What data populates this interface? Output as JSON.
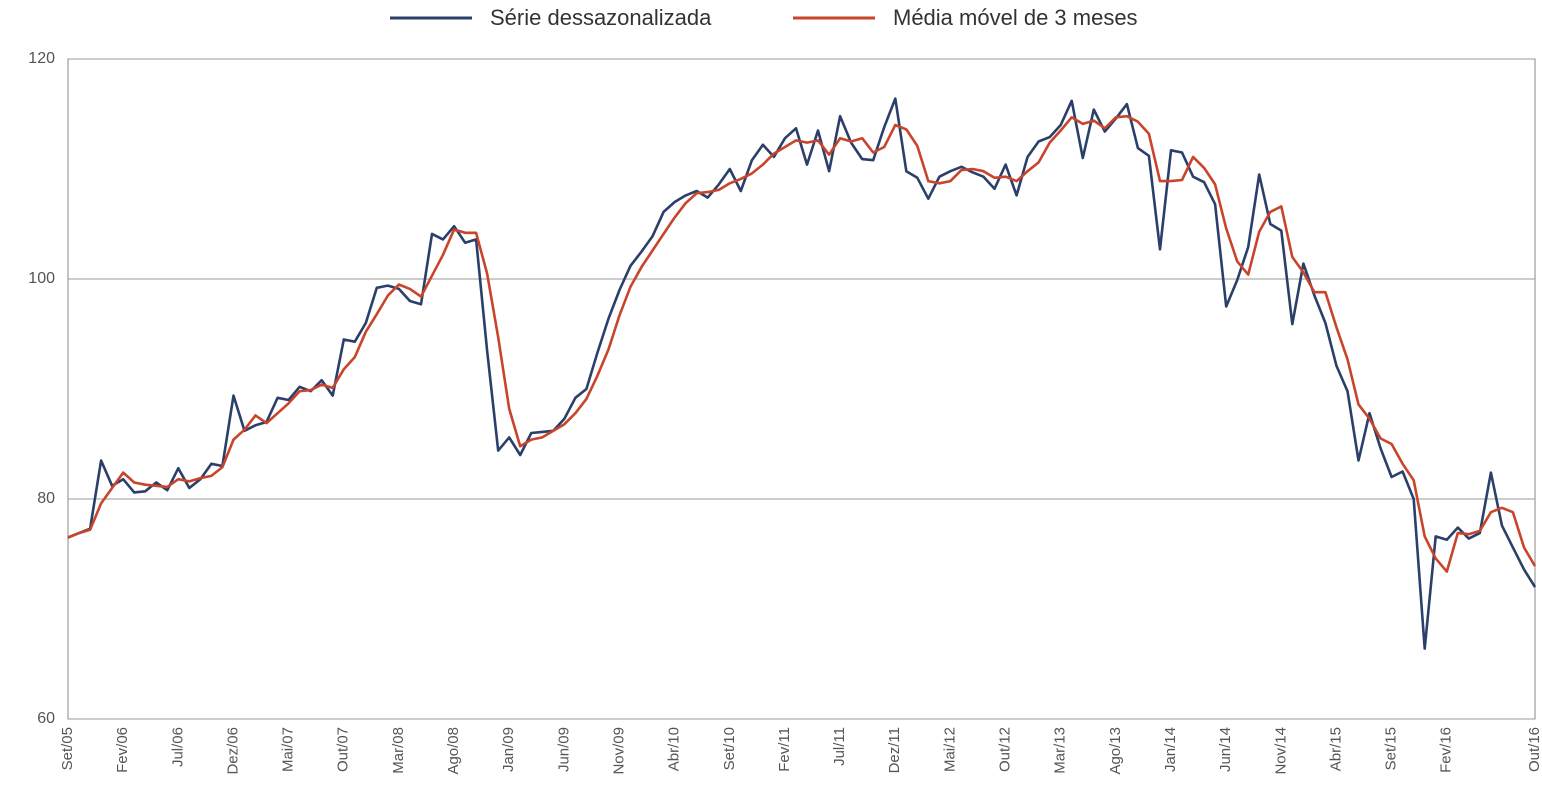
{
  "chart_data": {
    "type": "line",
    "categories": [
      "Set/05",
      null,
      null,
      null,
      null,
      "Fev/06",
      null,
      null,
      null,
      null,
      "Jul/06",
      null,
      null,
      null,
      null,
      "Dez/06",
      null,
      null,
      null,
      null,
      "Mai/07",
      null,
      null,
      null,
      null,
      "Out/07",
      null,
      null,
      null,
      null,
      "Mar/08",
      null,
      null,
      null,
      null,
      "Ago/08",
      null,
      null,
      null,
      null,
      "Jan/09",
      null,
      null,
      null,
      null,
      "Jun/09",
      null,
      null,
      null,
      null,
      "Nov/09",
      null,
      null,
      null,
      null,
      "Abr/10",
      null,
      null,
      null,
      null,
      "Set/10",
      null,
      null,
      null,
      null,
      "Fev/11",
      null,
      null,
      null,
      null,
      "Jul/11",
      null,
      null,
      null,
      null,
      "Dez/11",
      null,
      null,
      null,
      null,
      "Mai/12",
      null,
      null,
      null,
      null,
      "Out/12",
      null,
      null,
      null,
      null,
      "Mar/13",
      null,
      null,
      null,
      null,
      "Ago/13",
      null,
      null,
      null,
      null,
      "Jan/14",
      null,
      null,
      null,
      null,
      "Jun/14",
      null,
      null,
      null,
      null,
      "Nov/14",
      null,
      null,
      null,
      null,
      "Abr/15",
      null,
      null,
      null,
      null,
      "Set/15",
      null,
      null,
      null,
      null,
      "Fev/16",
      null,
      null,
      null,
      null,
      null,
      null,
      null,
      "Out/16"
    ],
    "series": [
      {
        "name": "Série dessazonalizada",
        "color": "#2b3f6b",
        "values": [
          76.5,
          76.9,
          77.3,
          83.5,
          81.2,
          81.8,
          80.6,
          80.7,
          81.5,
          80.8,
          82.8,
          81.0,
          81.8,
          83.2,
          83.0,
          89.4,
          86.2,
          86.7,
          87.0,
          89.2,
          89.0,
          90.2,
          89.8,
          90.8,
          89.4,
          94.5,
          94.3,
          96.0,
          99.2,
          99.4,
          99.1,
          98.0,
          97.7,
          104.1,
          103.6,
          104.8,
          103.3,
          103.6,
          93.5,
          84.4,
          85.6,
          84.0,
          86.0,
          86.1,
          86.2,
          87.3,
          89.2,
          90.0,
          93.3,
          96.4,
          99.0,
          101.2,
          102.5,
          103.9,
          106.1,
          107.0,
          107.6,
          108.0,
          107.4,
          108.6,
          110.0,
          108.0,
          110.8,
          112.2,
          111.1,
          112.8,
          113.7,
          110.4,
          113.5,
          109.8,
          114.8,
          112.4,
          110.9,
          110.8,
          113.8,
          116.4,
          109.8,
          109.2,
          107.3,
          109.3,
          109.8,
          110.2,
          109.7,
          109.3,
          108.2,
          110.4,
          107.6,
          111.1,
          112.5,
          112.9,
          114.0,
          116.2,
          111.0,
          115.4,
          113.4,
          114.6,
          115.9,
          111.9,
          111.2,
          102.7,
          111.7,
          111.5,
          109.3,
          108.8,
          106.8,
          97.5,
          99.9,
          102.9,
          109.5,
          105.0,
          104.4,
          95.9,
          101.4,
          98.5,
          96.0,
          92.1,
          89.8,
          83.5,
          87.8,
          84.6,
          82.0,
          82.5,
          80.0,
          66.4,
          76.6,
          76.3,
          77.4,
          76.4,
          76.9,
          82.4,
          77.6,
          75.6,
          73.6,
          72.0
        ]
      },
      {
        "name": "Média móvel de 3 meses",
        "color": "#c8442b",
        "values": [
          76.5,
          76.9,
          77.2,
          79.6,
          81.0,
          82.4,
          81.5,
          81.3,
          81.2,
          81.1,
          81.8,
          81.6,
          81.9,
          82.1,
          82.9,
          85.4,
          86.3,
          87.6,
          86.9,
          87.8,
          88.7,
          89.8,
          89.9,
          90.4,
          90.1,
          91.8,
          92.9,
          95.2,
          96.8,
          98.5,
          99.5,
          99.1,
          98.4,
          100.3,
          102.2,
          104.5,
          104.2,
          104.2,
          100.5,
          94.7,
          88.2,
          84.8,
          85.4,
          85.6,
          86.2,
          86.8,
          87.8,
          89.1,
          91.2,
          93.6,
          96.7,
          99.3,
          101.1,
          102.6,
          104.1,
          105.6,
          106.9,
          107.8,
          107.9,
          108.1,
          108.7,
          109.1,
          109.6,
          110.4,
          111.4,
          112.0,
          112.6,
          112.4,
          112.6,
          111.3,
          112.8,
          112.5,
          112.8,
          111.5,
          112.0,
          114.0,
          113.6,
          112.1,
          108.9,
          108.7,
          108.9,
          109.9,
          110.0,
          109.8,
          109.2,
          109.3,
          108.9,
          109.8,
          110.6,
          112.4,
          113.5,
          114.7,
          114.1,
          114.4,
          113.7,
          114.7,
          114.8,
          114.3,
          113.2,
          108.9,
          108.9,
          109.0,
          111.1,
          110.1,
          108.6,
          104.6,
          101.6,
          100.4,
          104.3,
          106.1,
          106.6,
          102.0,
          100.6,
          98.8,
          98.8,
          95.6,
          92.7,
          88.6,
          87.3,
          85.5,
          85.0,
          83.2,
          81.7,
          76.6,
          74.6,
          73.4,
          76.9,
          76.8,
          77.1,
          78.8,
          79.2,
          78.8,
          75.6,
          73.9
        ]
      }
    ],
    "ylim": [
      60,
      120
    ],
    "yticks": [
      60,
      80,
      100,
      120
    ],
    "grid": true,
    "legend": "top"
  }
}
